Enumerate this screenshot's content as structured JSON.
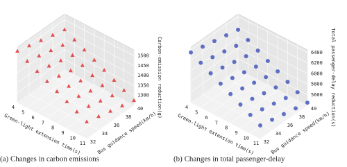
{
  "chart_data": [
    {
      "type": "scatter3d",
      "caption": "(a) Changes in carbon emissions",
      "xlabel": "Green-light extension time(s)",
      "ylabel": "Bus guidance speed(km/h)",
      "zlabel": "Carbon-emission reduction(g)",
      "marker": "triangle",
      "color": "#e0282a",
      "xlim": [
        4,
        11
      ],
      "ylim": [
        32,
        40
      ],
      "zlim": [
        1250,
        1530
      ],
      "xticks": [
        4,
        5,
        6,
        7,
        8,
        9,
        10,
        11
      ],
      "yticks": [
        32,
        34,
        36,
        38,
        40
      ],
      "zticks": [
        1300,
        1350,
        1400,
        1450,
        1500
      ],
      "x": [
        4,
        5,
        6,
        7,
        8,
        9,
        10,
        11,
        4,
        5,
        6,
        7,
        8,
        9,
        10,
        11,
        4,
        5,
        6,
        7,
        8,
        9,
        10,
        11,
        4,
        5,
        6,
        7,
        8,
        9,
        10,
        11,
        4,
        5,
        6,
        7,
        8,
        9,
        10,
        11
      ],
      "y": [
        32,
        32,
        32,
        32,
        32,
        32,
        32,
        32,
        34,
        34,
        34,
        34,
        34,
        34,
        34,
        34,
        36,
        36,
        36,
        36,
        36,
        36,
        36,
        36,
        38,
        38,
        38,
        38,
        38,
        38,
        38,
        38,
        40,
        40,
        40,
        40,
        40,
        40,
        40,
        40
      ],
      "z": [
        1510,
        1485,
        1460,
        1435,
        1410,
        1385,
        1360,
        1335,
        1495,
        1470,
        1445,
        1420,
        1395,
        1370,
        1345,
        1320,
        1480,
        1455,
        1430,
        1405,
        1380,
        1355,
        1330,
        1305,
        1465,
        1440,
        1415,
        1390,
        1365,
        1340,
        1315,
        1290,
        1450,
        1425,
        1400,
        1375,
        1350,
        1325,
        1300,
        1275
      ]
    },
    {
      "type": "scatter3d",
      "caption": "(b) Changes in total passenger-delay",
      "xlabel": "Green-light extension time(s)",
      "ylabel": "Bus guidance speed(km/h)",
      "zlabel": "Total passenger-delay reduction(s)",
      "marker": "circle",
      "color": "#3a4fb8",
      "xlim": [
        4,
        11
      ],
      "ylim": [
        32,
        40
      ],
      "zlim": [
        5400,
        6450
      ],
      "xticks": [
        4,
        5,
        6,
        7,
        8,
        9,
        10,
        11
      ],
      "yticks": [
        32,
        34,
        36,
        38,
        40
      ],
      "zticks": [
        5600,
        5800,
        6000,
        6200,
        6400
      ],
      "x": [
        4,
        5,
        6,
        7,
        8,
        9,
        10,
        11,
        4,
        5,
        6,
        7,
        8,
        9,
        10,
        11,
        4,
        5,
        6,
        7,
        8,
        9,
        10,
        11,
        4,
        5,
        6,
        7,
        8,
        9,
        10,
        11,
        4,
        5,
        6,
        7,
        8,
        9,
        10,
        11
      ],
      "y": [
        32,
        32,
        32,
        32,
        32,
        32,
        32,
        32,
        34,
        34,
        34,
        34,
        34,
        34,
        34,
        34,
        36,
        36,
        36,
        36,
        36,
        36,
        36,
        36,
        38,
        38,
        38,
        38,
        38,
        38,
        38,
        38,
        40,
        40,
        40,
        40,
        40,
        40,
        40,
        40
      ],
      "z": [
        6350,
        6250,
        6150,
        6050,
        5950,
        5850,
        5750,
        5650,
        6300,
        6200,
        6100,
        6000,
        5900,
        5800,
        5700,
        5600,
        6250,
        6150,
        6050,
        5950,
        5850,
        5750,
        5650,
        5550,
        6200,
        6100,
        6000,
        5900,
        5800,
        5700,
        5600,
        5500,
        6150,
        6050,
        5950,
        5850,
        5750,
        5650,
        5550,
        5450
      ]
    }
  ]
}
